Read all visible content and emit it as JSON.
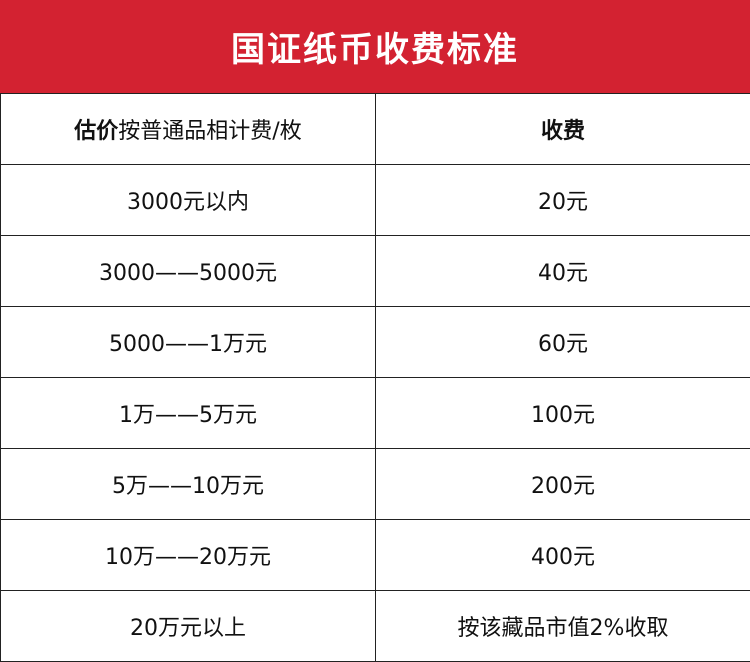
{
  "title": "国证纸币收费标准",
  "header": {
    "left_bold": "估价",
    "left_normal": "按普通品相计费/枚",
    "right": "收费"
  },
  "rows": [
    {
      "range": "3000元以内",
      "fee": "20元"
    },
    {
      "range": "3000——5000元",
      "fee": "40元"
    },
    {
      "range": "5000——1万元",
      "fee": "60元"
    },
    {
      "range": "1万——5万元",
      "fee": "100元"
    },
    {
      "range": "5万——10万元",
      "fee": "200元"
    },
    {
      "range": "10万——20万元",
      "fee": "400元"
    },
    {
      "range": "20万元以上",
      "fee": "按该藏品市值2%收取"
    }
  ],
  "colors": {
    "banner": "#d32231",
    "banner_text": "#ffffff",
    "border": "#222222"
  }
}
